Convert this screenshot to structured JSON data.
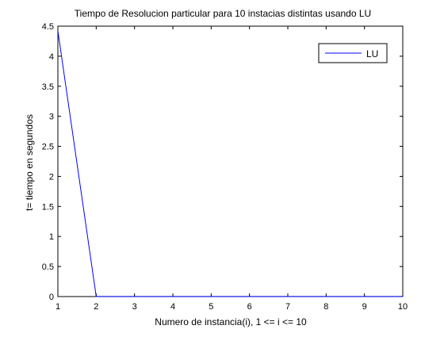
{
  "chart_data": {
    "type": "line",
    "title": "Tiempo de Resolucion particular para 10 instacias distintas usando LU",
    "xlabel": "Numero de instancia(i), 1 <= i <= 10",
    "ylabel": "t= tiempo en segundos",
    "xlim": [
      1,
      10
    ],
    "ylim": [
      0,
      4.5
    ],
    "xticks": [
      "1",
      "2",
      "3",
      "4",
      "5",
      "6",
      "7",
      "8",
      "9",
      "10"
    ],
    "yticks": [
      "0",
      "0.5",
      "1",
      "1.5",
      "2",
      "2.5",
      "3",
      "3.5",
      "4",
      "4.5"
    ],
    "grid": false,
    "legend_position": "top-right",
    "series": [
      {
        "name": "LU",
        "color": "#0000ff",
        "x": [
          1,
          2,
          3,
          4,
          5,
          6,
          7,
          8,
          9,
          10
        ],
        "y": [
          4.42,
          0.002,
          0.002,
          0.002,
          0.002,
          0.002,
          0.002,
          0.002,
          0.002,
          0.002
        ]
      }
    ]
  }
}
